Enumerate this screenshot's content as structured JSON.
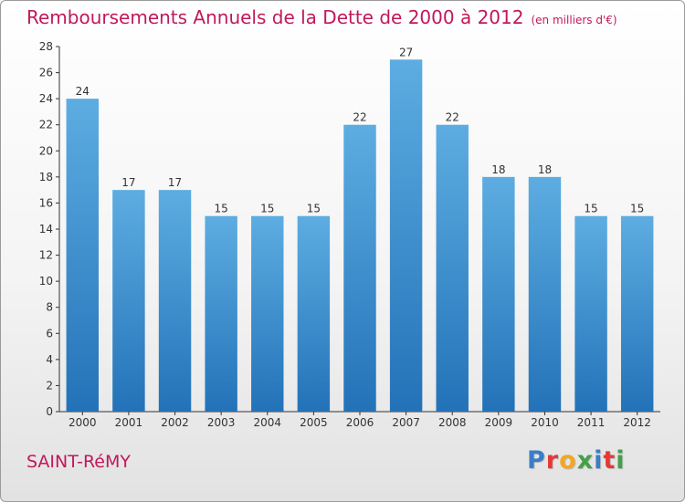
{
  "header": {
    "title": "Remboursements Annuels de la Dette de 2000 à 2012",
    "subtitle": "(en milliers d'€)"
  },
  "footer": {
    "commune": "SAINT-RéMY",
    "brand": "Proxiti",
    "brand_colors": [
      "#3a7dc9",
      "#e53935",
      "#f5a623",
      "#43a047",
      "#3a7dc9",
      "#e53935",
      "#43a047"
    ]
  },
  "colors": {
    "accent": "#c2185b",
    "bar_top": "#5dade2",
    "bar_bottom": "#2372b8"
  },
  "chart_data": {
    "type": "bar",
    "categories": [
      "2000",
      "2001",
      "2002",
      "2003",
      "2004",
      "2005",
      "2006",
      "2007",
      "2008",
      "2009",
      "2010",
      "2011",
      "2012"
    ],
    "values": [
      24,
      17,
      17,
      15,
      15,
      15,
      22,
      27,
      22,
      18,
      18,
      15,
      15
    ],
    "title": "Remboursements Annuels de la Dette de 2000 à 2012",
    "xlabel": "",
    "ylabel": "",
    "ylim": [
      0,
      28
    ],
    "yticks": [
      0,
      2,
      4,
      6,
      8,
      10,
      12,
      14,
      16,
      18,
      20,
      22,
      24,
      26,
      28
    ],
    "grid": false,
    "data_labels": true
  }
}
